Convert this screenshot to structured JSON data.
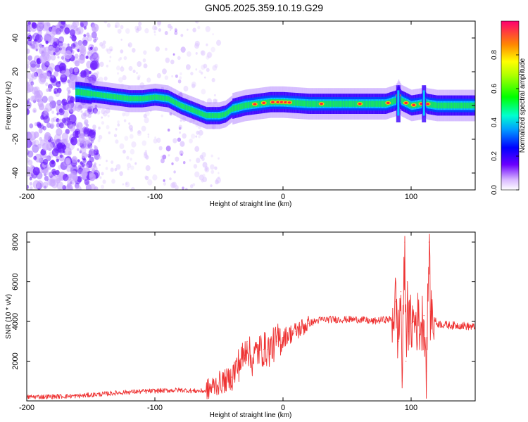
{
  "title": "GN05.2025.359.10.19.G29",
  "chart_data": [
    {
      "type": "heatmap",
      "name": "spectrogram",
      "xlabel": "Height of straight line (km)",
      "ylabel": "Frequency (Hz)",
      "xlim": [
        -200,
        150
      ],
      "ylim": [
        -50,
        50
      ],
      "xticks": [
        -200,
        -100,
        0,
        100
      ],
      "yticks": [
        -40,
        -20,
        0,
        20,
        40
      ],
      "colorbar": {
        "label": "Normalized spectral amplitude",
        "range": [
          0,
          1
        ],
        "ticks": [
          "0.0",
          "0.2",
          "0.4",
          "0.6",
          "0.8"
        ]
      },
      "ridge_frequency": {
        "x": [
          -160,
          -150,
          -140,
          -130,
          -120,
          -110,
          -100,
          -90,
          -80,
          -70,
          -60,
          -50,
          -45,
          -40,
          -30,
          -20,
          -10,
          0,
          20,
          50,
          80,
          88,
          90,
          92,
          100,
          108,
          110,
          112,
          120,
          150
        ],
        "y": [
          8,
          7,
          6,
          5,
          4,
          4,
          5,
          4,
          0,
          -3,
          -6,
          -6,
          -5,
          -2,
          0,
          1,
          2,
          2,
          1,
          1,
          1,
          3,
          6,
          3,
          0,
          1,
          3,
          1,
          0,
          0
        ]
      }
    },
    {
      "type": "line",
      "name": "snr",
      "xlabel": "Height of straight line (km)",
      "ylabel": "SNR (10 * v/v)",
      "xlim": [
        -200,
        150
      ],
      "ylim": [
        0,
        8500
      ],
      "xticks": [
        -200,
        -100,
        0,
        100
      ],
      "yticks": [
        2000,
        4000,
        6000,
        8000
      ],
      "series": [
        {
          "name": "SNR",
          "color": "#ee3333",
          "x": [
            -200,
            -180,
            -160,
            -140,
            -120,
            -100,
            -80,
            -70,
            -60,
            -55,
            -50,
            -45,
            -40,
            -35,
            -30,
            -28,
            -25,
            -20,
            -15,
            -10,
            -5,
            0,
            10,
            20,
            25,
            30,
            40,
            50,
            60,
            70,
            80,
            85,
            88,
            90,
            92,
            93,
            95,
            96,
            97,
            98,
            100,
            102,
            105,
            108,
            110,
            112,
            114,
            115,
            120,
            130,
            140,
            150
          ],
          "y": [
            200,
            220,
            250,
            350,
            450,
            500,
            550,
            500,
            500,
            700,
            900,
            1000,
            1200,
            1800,
            2300,
            3000,
            2000,
            2500,
            2600,
            2600,
            3000,
            3200,
            3500,
            3900,
            4000,
            4100,
            4100,
            4100,
            4100,
            4000,
            4100,
            4100,
            5000,
            3000,
            5500,
            1000,
            8000,
            2000,
            6000,
            3500,
            3900,
            4000,
            4000,
            3800,
            4300,
            1500,
            8000,
            4500,
            3900,
            3800,
            3800,
            3700
          ]
        }
      ]
    }
  ]
}
